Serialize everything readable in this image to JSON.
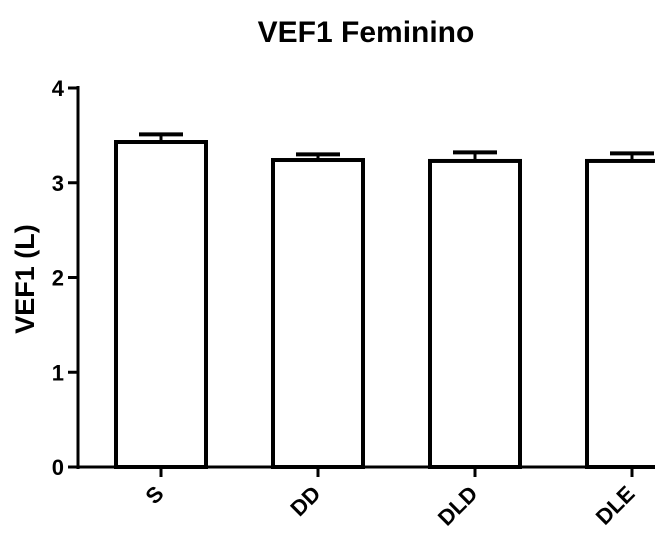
{
  "chart_data": {
    "type": "bar",
    "title": "VEF1 Feminino",
    "xlabel": "",
    "ylabel": "VEF1 (L)",
    "categories": [
      "S",
      "DD",
      "DLD",
      "DLE"
    ],
    "values": [
      3.43,
      3.24,
      3.23,
      3.23
    ],
    "error_upper": [
      0.08,
      0.06,
      0.09,
      0.08
    ],
    "ylim": [
      0,
      4
    ],
    "yticks": [
      "0",
      "1",
      "2",
      "3",
      "4"
    ],
    "grid": false,
    "legend": "none",
    "colors": {
      "bar_fill": "#ffffff",
      "stroke": "#000000",
      "text": "#000000"
    }
  }
}
